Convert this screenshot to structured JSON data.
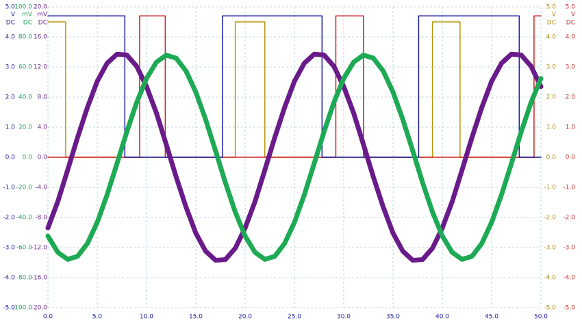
{
  "chart_data": {
    "type": "line",
    "xlim": [
      0,
      50
    ],
    "xticks": [
      {
        "value": 0,
        "label": "0.0"
      },
      {
        "value": 5,
        "label": "5.0"
      },
      {
        "value": 10,
        "label": "10.0"
      },
      {
        "value": 15,
        "label": "15.0"
      },
      {
        "value": 20,
        "label": "20.0"
      },
      {
        "value": 25,
        "label": "25.0"
      },
      {
        "value": 30,
        "label": "30.0"
      },
      {
        "value": 35,
        "label": "35.0"
      },
      {
        "value": 40,
        "label": "40.0"
      },
      {
        "value": 45,
        "label": "45.0"
      },
      {
        "value": 50,
        "label": "50.0"
      }
    ],
    "grid": true,
    "y_axes": [
      {
        "unit": "V",
        "coupling": "DC",
        "color": "#1c1c9c",
        "side": "left",
        "lim": [
          -5,
          5
        ],
        "ticks": [
          {
            "value": 5,
            "label": "5.0"
          },
          {
            "value": 4,
            "label": "4.0"
          },
          {
            "value": 3,
            "label": "3.0"
          },
          {
            "value": 2,
            "label": "2.0"
          },
          {
            "value": 1,
            "label": "1.0"
          },
          {
            "value": 0,
            "label": "0.0"
          },
          {
            "value": -1,
            "label": "-1.0"
          },
          {
            "value": -2,
            "label": "-2.0"
          },
          {
            "value": -3,
            "label": "-3.0"
          },
          {
            "value": -4,
            "label": "-4.0"
          },
          {
            "value": -5,
            "label": "-5.0"
          }
        ]
      },
      {
        "unit": "mV",
        "coupling": "DC",
        "color": "#22a256",
        "side": "left",
        "lim": [
          -100,
          100
        ],
        "ticks": [
          {
            "value": 100,
            "label": "100.0"
          },
          {
            "value": 80,
            "label": "80.0"
          },
          {
            "value": 60,
            "label": "60.0"
          },
          {
            "value": 40,
            "label": "40.0"
          },
          {
            "value": 20,
            "label": "20.0"
          },
          {
            "value": 0,
            "label": "0.0"
          },
          {
            "value": -20,
            "label": "-20.0"
          },
          {
            "value": -40,
            "label": "-40.0"
          },
          {
            "value": -60,
            "label": "-60.0"
          },
          {
            "value": -80,
            "label": "-80.0"
          },
          {
            "value": -100,
            "label": "-100.0"
          }
        ]
      },
      {
        "unit": "mV",
        "coupling": "DC",
        "color": "#6b2a8c",
        "side": "left",
        "lim": [
          -20,
          20
        ],
        "ticks": [
          {
            "value": 20,
            "label": "20.0"
          },
          {
            "value": 16,
            "label": "16.0"
          },
          {
            "value": 12,
            "label": "12.0"
          },
          {
            "value": 8,
            "label": "8.0"
          },
          {
            "value": 4,
            "label": "4.0"
          },
          {
            "value": 0,
            "label": "0.0"
          },
          {
            "value": -4,
            "label": "-4.0"
          },
          {
            "value": -8,
            "label": "-8.0"
          },
          {
            "value": -12,
            "label": "-12.0"
          },
          {
            "value": -16,
            "label": "-16.0"
          },
          {
            "value": -20,
            "label": "-20.0"
          }
        ]
      },
      {
        "unit": "V",
        "coupling": "DC",
        "color": "#b08c1a",
        "side": "right",
        "lim": [
          -5,
          5
        ],
        "ticks": [
          {
            "value": 5,
            "label": "5.0"
          },
          {
            "value": 4,
            "label": "4.0"
          },
          {
            "value": 3,
            "label": "3.0"
          },
          {
            "value": 2,
            "label": "2.0"
          },
          {
            "value": 1,
            "label": "1.0"
          },
          {
            "value": 0,
            "label": "0.0"
          },
          {
            "value": -1,
            "label": "-1.0"
          },
          {
            "value": -2,
            "label": "-2.0"
          },
          {
            "value": -3,
            "label": "-3.0"
          },
          {
            "value": -4,
            "label": "-4.0"
          },
          {
            "value": -5,
            "label": "-5.0"
          }
        ]
      },
      {
        "unit": "V",
        "coupling": "DC",
        "color": "#c8302a",
        "side": "right",
        "lim": [
          -5,
          5
        ],
        "ticks": [
          {
            "value": 5,
            "label": "5.0"
          },
          {
            "value": 4,
            "label": "4.0"
          },
          {
            "value": 3,
            "label": "3.0"
          },
          {
            "value": 2,
            "label": "2.0"
          },
          {
            "value": 1,
            "label": "1.0"
          },
          {
            "value": 0,
            "label": "0.0"
          },
          {
            "value": -1,
            "label": "-1.0"
          },
          {
            "value": -2,
            "label": "-2.0"
          },
          {
            "value": -3,
            "label": "-3.0"
          },
          {
            "value": -4,
            "label": "-4.0"
          },
          {
            "value": -5,
            "label": "-5.0"
          }
        ]
      }
    ],
    "series": [
      {
        "axis": 3,
        "color": "#b8960c",
        "x": [
          0,
          1.8,
          1.8,
          19.0,
          19.0,
          22.0,
          22.0,
          39.0,
          39.0,
          41.8,
          41.8,
          50
        ],
        "values": [
          4.5,
          4.5,
          0,
          0,
          4.5,
          4.5,
          0,
          0,
          4.5,
          4.5,
          0,
          0
        ]
      },
      {
        "axis": 4,
        "color": "#d02020",
        "x": [
          0,
          9.3,
          9.3,
          11.9,
          11.9,
          29.2,
          29.2,
          32.0,
          32.0,
          49.3,
          49.3,
          50
        ],
        "values": [
          0,
          0,
          4.7,
          4.7,
          0,
          0,
          4.7,
          4.7,
          0,
          0,
          4.7,
          4.7
        ]
      },
      {
        "axis": 0,
        "color": "#1a1aa8",
        "x": [
          0,
          7.8,
          7.8,
          17.7,
          17.7,
          27.8,
          27.8,
          37.6,
          37.6,
          47.8,
          47.8,
          50
        ],
        "values": [
          4.7,
          4.7,
          0,
          0,
          4.7,
          4.7,
          0,
          0,
          4.7,
          4.7,
          0,
          0
        ]
      },
      {
        "axis": 2,
        "color": "#6a1b8a",
        "x": [
          0,
          1,
          2,
          3,
          4,
          5,
          6,
          7,
          8,
          9,
          10,
          11,
          12,
          13,
          14,
          15,
          16,
          17,
          18,
          19,
          20,
          21,
          22,
          23,
          24,
          25,
          26,
          27,
          28,
          29,
          30,
          31,
          32,
          33,
          34,
          35,
          36,
          37,
          38,
          39,
          40,
          41,
          42,
          43,
          44,
          45,
          46,
          47,
          48,
          49,
          50
        ],
        "values": [
          -9.4,
          -5.9,
          -1.7,
          2.6,
          6.6,
          10.1,
          12.5,
          13.7,
          13.6,
          12.1,
          9.4,
          5.9,
          1.7,
          -2.6,
          -6.6,
          -10.1,
          -12.5,
          -13.7,
          -13.6,
          -12.1,
          -9.4,
          -5.9,
          -1.7,
          2.6,
          6.6,
          10.1,
          12.5,
          13.7,
          13.6,
          12.1,
          9.4,
          5.9,
          1.7,
          -2.6,
          -6.6,
          -10.1,
          -12.5,
          -13.7,
          -13.6,
          -12.1,
          -9.4,
          -5.9,
          -1.7,
          2.6,
          6.6,
          10.1,
          12.5,
          13.7,
          13.6,
          12.1,
          9.4
        ]
      },
      {
        "axis": 1,
        "color": "#1eaa55",
        "x": [
          0,
          1,
          2,
          3,
          4,
          5,
          6,
          7,
          8,
          9,
          10,
          11,
          12,
          13,
          14,
          15,
          16,
          17,
          18,
          19,
          20,
          21,
          22,
          23,
          24,
          25,
          26,
          27,
          28,
          29,
          30,
          31,
          32,
          33,
          34,
          35,
          36,
          37,
          38,
          39,
          40,
          41,
          42,
          43,
          44,
          45,
          46,
          47,
          48,
          49,
          50
        ],
        "values": [
          -52.4,
          -63.2,
          -67.9,
          -65.9,
          -57.4,
          -43.3,
          -25.0,
          -4.3,
          16.9,
          36.4,
          52.4,
          63.2,
          67.9,
          65.9,
          57.4,
          43.3,
          25.0,
          4.3,
          -16.9,
          -36.4,
          -52.4,
          -63.2,
          -67.9,
          -65.9,
          -57.4,
          -43.3,
          -25.0,
          -4.3,
          16.9,
          36.4,
          52.4,
          63.2,
          67.9,
          65.9,
          57.4,
          43.3,
          25.0,
          4.3,
          -16.9,
          -36.4,
          -52.4,
          -63.2,
          -67.9,
          -65.9,
          -57.4,
          -43.3,
          -25.0,
          -4.3,
          16.9,
          36.4,
          52.4
        ]
      }
    ]
  }
}
